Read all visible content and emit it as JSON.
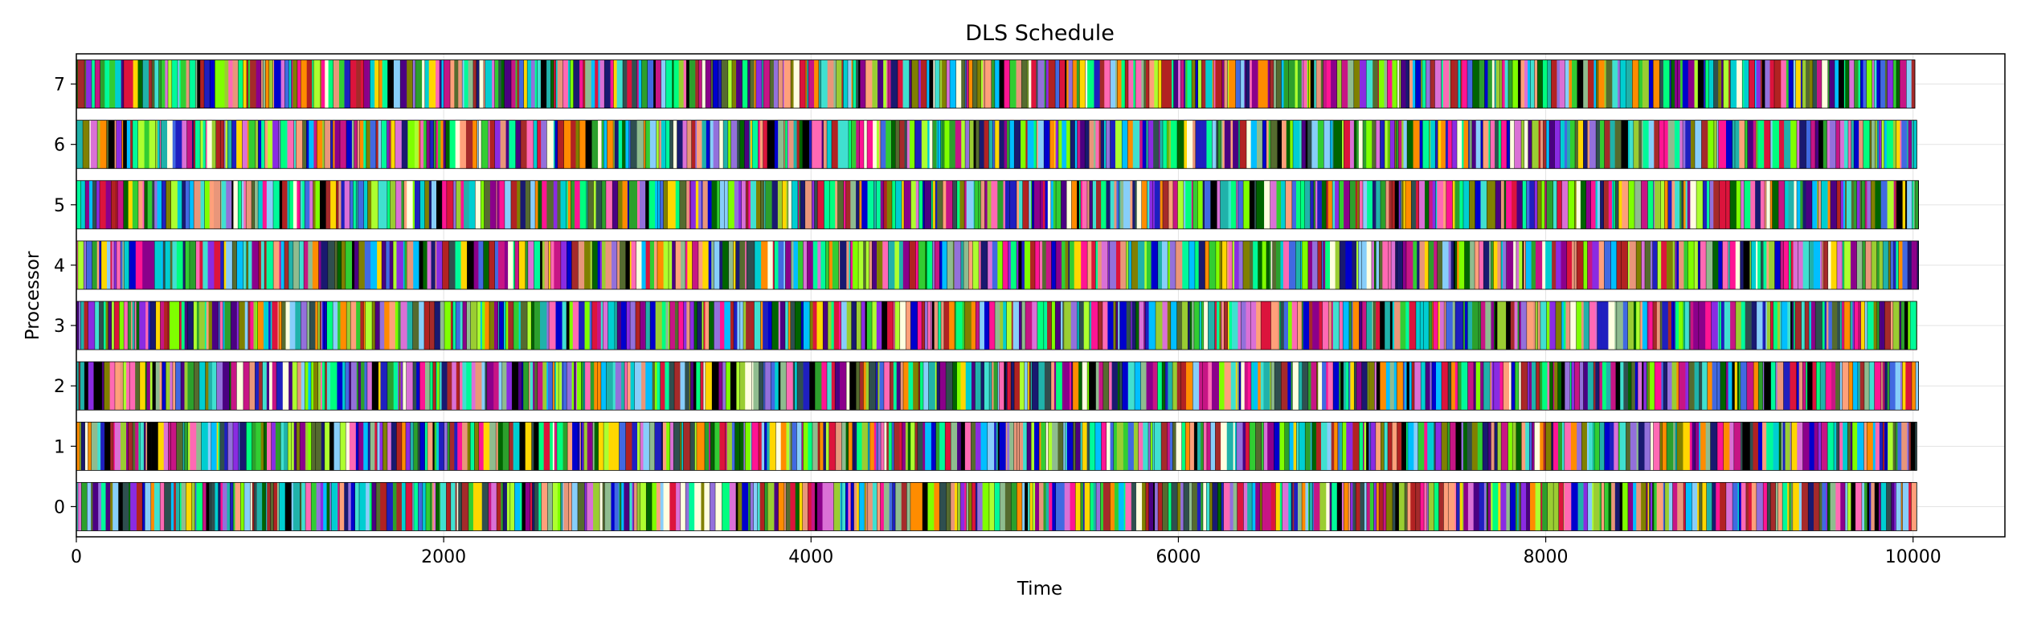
{
  "chart_data": {
    "type": "gantt",
    "title": "DLS Schedule",
    "xlabel": "Time",
    "ylabel": "Processor",
    "xlim": [
      0,
      10500
    ],
    "ylim": [
      -0.5,
      7.5
    ],
    "x_ticks": [
      0,
      2000,
      4000,
      6000,
      8000,
      10000
    ],
    "x_tick_labels": [
      "0",
      "2000",
      "4000",
      "6000",
      "8000",
      "10000"
    ],
    "y_ticks": [
      0,
      1,
      2,
      3,
      4,
      5,
      6,
      7
    ],
    "y_tick_labels": [
      "0",
      "1",
      "2",
      "3",
      "4",
      "5",
      "6",
      "7"
    ],
    "grid": true,
    "legend": "none",
    "bar_height": 0.8,
    "processors": [
      {
        "processor": 0,
        "start": 0,
        "end": 10020
      },
      {
        "processor": 1,
        "start": 0,
        "end": 10020
      },
      {
        "processor": 2,
        "start": 0,
        "end": 10030
      },
      {
        "processor": 3,
        "start": 0,
        "end": 10020
      },
      {
        "processor": 4,
        "start": 0,
        "end": 10030
      },
      {
        "processor": 5,
        "start": 0,
        "end": 10030
      },
      {
        "processor": 6,
        "start": 0,
        "end": 10020
      },
      {
        "processor": 7,
        "start": 0,
        "end": 10010
      }
    ],
    "task_palette": [
      "#1f1fbf",
      "#2ca02c",
      "#8b008b",
      "#ff1493",
      "#00ced1",
      "#ffd700",
      "#006400",
      "#b22222",
      "#7fff00",
      "#4b0082",
      "#20b2aa",
      "#ff8c00",
      "#9370db",
      "#32cd32",
      "#dc143c",
      "#00bfff",
      "#808000",
      "#ff69b4",
      "#2f4f4f",
      "#adff2f",
      "#c71585",
      "#4169e1",
      "#8fbc8f",
      "#000000",
      "#00ff7f",
      "#da70d6",
      "#556b2f",
      "#ffa07a",
      "#0000cd",
      "#00fa9a",
      "#e9967a",
      "#9acd32",
      "#8a2be2",
      "#40e0d0",
      "#a52a2a",
      "#87cefa",
      "#ffffe0",
      "#191970"
    ]
  }
}
